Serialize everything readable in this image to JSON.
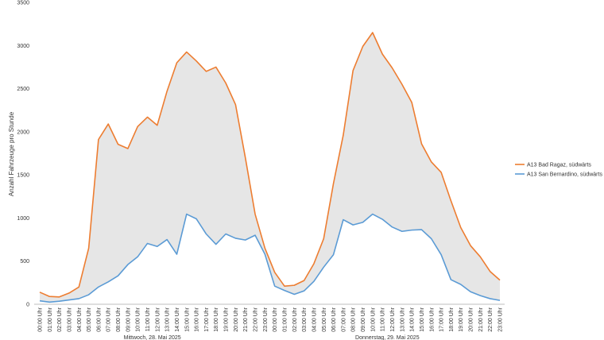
{
  "chart_data": {
    "type": "line",
    "title": "",
    "ylabel": "Anzahl Fahrzeuge pro Stunde",
    "xlabel": "",
    "ylim": [
      0,
      3500
    ],
    "yticks": [
      0,
      500,
      1000,
      1500,
      2000,
      2500,
      3000,
      3500
    ],
    "yticklabels": [
      "0",
      "500",
      "1000",
      "1500",
      "2000",
      "2500",
      "3000",
      "3500"
    ],
    "x": [
      "00:00 Uhr",
      "01:00 Uhr",
      "02:00 Uhr",
      "03:00 Uhr",
      "04:00 Uhr",
      "05:00 Uhr",
      "06:00 Uhr",
      "07:00 Uhr",
      "08:00 Uhr",
      "09:00 Uhr",
      "10:00 Uhr",
      "11:00 Uhr",
      "12:00 Uhr",
      "13:00 Uhr",
      "14:00 Uhr",
      "15:00 Uhr",
      "16:00 Uhr",
      "17:00 Uhr",
      "18:00 Uhr",
      "19:00 Uhr",
      "20:00 Uhr",
      "21:00 Uhr",
      "22:00 Uhr",
      "23:00 Uhr",
      "00:00 Uhr",
      "01:00 Uhr",
      "02:00 Uhr",
      "03:00 Uhr",
      "04:00 Uhr",
      "05:00 Uhr",
      "06:00 Uhr",
      "07:00 Uhr",
      "08:00 Uhr",
      "09:00 Uhr",
      "10:00 Uhr",
      "11:00 Uhr",
      "12:00 Uhr",
      "13:00 Uhr",
      "14:00 Uhr",
      "15:00 Uhr",
      "16:00 Uhr",
      "17:00 Uhr",
      "18:00 Uhr",
      "19:00 Uhr",
      "20:00 Uhr",
      "21:00 Uhr",
      "22:00 Uhr",
      "23:00 Uhr"
    ],
    "groups": [
      {
        "label": "Mittwoch, 28. Mai 2025",
        "start_index": 0,
        "end_index": 23
      },
      {
        "label": "Donnerstag, 29. Mai 2025",
        "start_index": 24,
        "end_index": 47
      }
    ],
    "fill_between": {
      "color": "#e6e6e6"
    },
    "legend_position": "right",
    "grid": false,
    "series": [
      {
        "name": "A13 Bad Ragaz, südwärts",
        "color": "#ed7d31",
        "values": [
          140,
          90,
          85,
          130,
          200,
          650,
          1910,
          2090,
          1855,
          1805,
          2060,
          2170,
          2075,
          2470,
          2800,
          2925,
          2820,
          2700,
          2750,
          2565,
          2315,
          1700,
          1045,
          650,
          370,
          210,
          220,
          275,
          470,
          760,
          1400,
          1960,
          2710,
          2990,
          3150,
          2900,
          2740,
          2550,
          2340,
          1860,
          1650,
          1530,
          1200,
          890,
          680,
          550,
          380,
          280
        ]
      },
      {
        "name": "A13 San Bernardino, südwärts",
        "color": "#5b9bd5",
        "values": [
          40,
          25,
          35,
          50,
          65,
          110,
          200,
          260,
          330,
          460,
          550,
          705,
          670,
          750,
          580,
          1045,
          990,
          815,
          695,
          815,
          765,
          745,
          800,
          580,
          210,
          160,
          115,
          155,
          265,
          430,
          575,
          980,
          920,
          950,
          1045,
          985,
          895,
          845,
          860,
          865,
          760,
          575,
          285,
          230,
          145,
          100,
          65,
          45
        ]
      }
    ]
  }
}
